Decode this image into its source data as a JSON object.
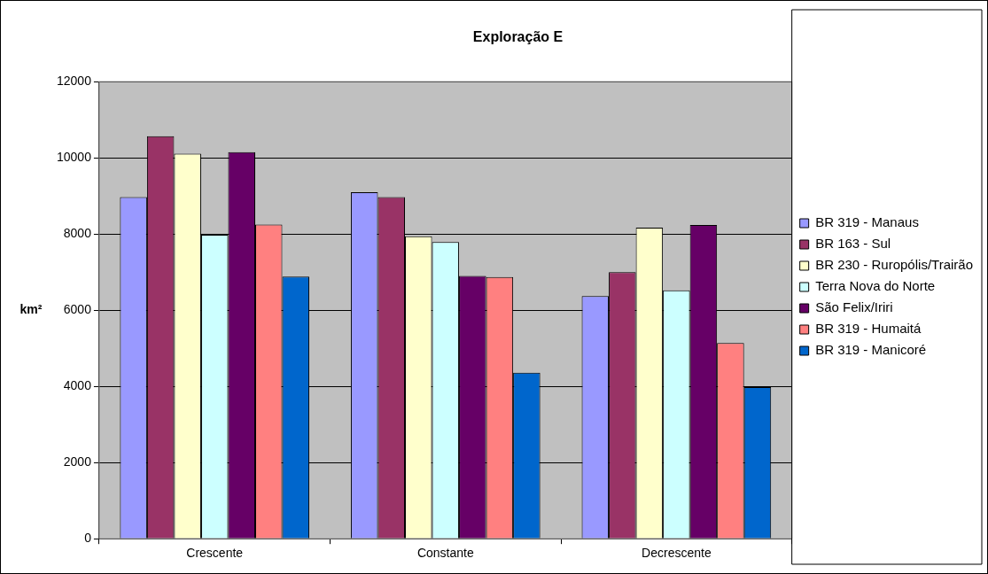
{
  "chart_data": {
    "type": "bar",
    "title": "Exploração E",
    "ylabel": "km²",
    "categories": [
      "Crescente",
      "Constante",
      "Decrescente"
    ],
    "series": [
      {
        "name": "BR 319 - Manaus",
        "color": "#9999ff",
        "values": [
          8970,
          9100,
          6370
        ]
      },
      {
        "name": "BR 163 - Sul",
        "color": "#993366",
        "values": [
          10570,
          8970,
          7000
        ]
      },
      {
        "name": "BR 230 - Ruropólis/Trairão",
        "color": "#ffffcc",
        "values": [
          10110,
          7940,
          8170
        ]
      },
      {
        "name": "Terra Nova do Norte",
        "color": "#ccffff",
        "values": [
          7980,
          7790,
          6520
        ]
      },
      {
        "name": "São Felix/Iriri",
        "color": "#660066",
        "values": [
          10150,
          6900,
          8240
        ]
      },
      {
        "name": "BR 319 - Humaitá",
        "color": "#ff8080",
        "values": [
          8250,
          6870,
          5140
        ]
      },
      {
        "name": "BR 319 - Manicoré",
        "color": "#0066cc",
        "values": [
          6880,
          4360,
          3980
        ]
      }
    ],
    "ylim": [
      0,
      12000
    ],
    "yticks": [
      0,
      2000,
      4000,
      6000,
      8000,
      10000,
      12000
    ],
    "grid": "y",
    "legend": "right"
  }
}
